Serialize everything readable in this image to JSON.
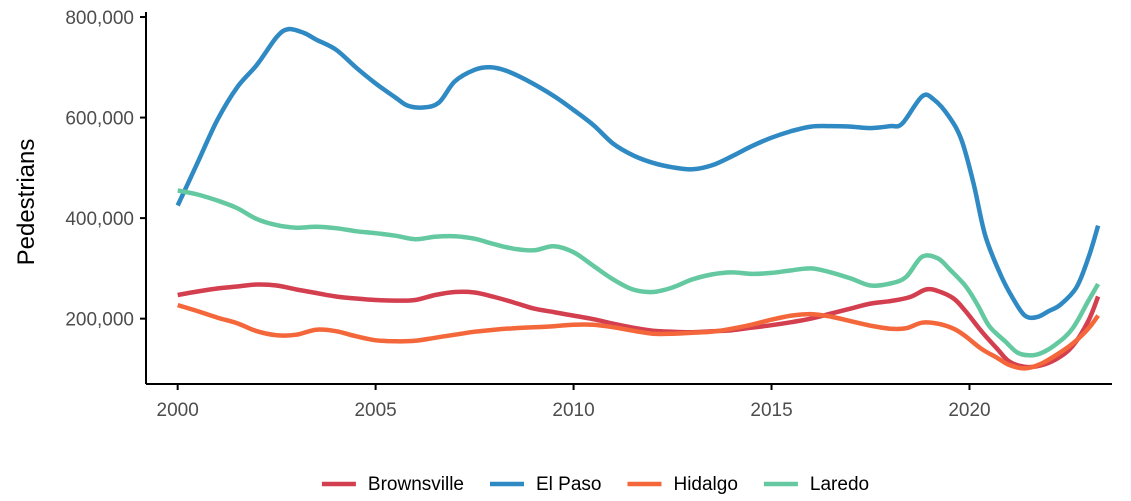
{
  "chart_data": {
    "type": "line",
    "title": "",
    "xlabel": "",
    "ylabel": "Pedestrians",
    "xlim": [
      1999.2,
      2023.6
    ],
    "ylim": [
      70000,
      810000
    ],
    "x_ticks": [
      2000,
      2005,
      2010,
      2015,
      2020
    ],
    "x_tick_labels": [
      "2000",
      "2005",
      "2010",
      "2015",
      "2020"
    ],
    "y_ticks": [
      200000,
      400000,
      600000,
      800000
    ],
    "y_tick_labels": [
      "200,000",
      "400,000",
      "600,000",
      "800,000"
    ],
    "grid": false,
    "legend_position": "bottom",
    "series": [
      {
        "name": "Brownsville",
        "color": "#d33f4f",
        "points": [
          [
            2000.0,
            247000
          ],
          [
            2000.5,
            254000
          ],
          [
            2001.0,
            260000
          ],
          [
            2001.5,
            264000
          ],
          [
            2002.0,
            268000
          ],
          [
            2002.5,
            266000
          ],
          [
            2003.0,
            258000
          ],
          [
            2003.5,
            251000
          ],
          [
            2004.0,
            244000
          ],
          [
            2004.5,
            240000
          ],
          [
            2005.0,
            237000
          ],
          [
            2005.5,
            236000
          ],
          [
            2006.0,
            237000
          ],
          [
            2006.5,
            247000
          ],
          [
            2007.0,
            253000
          ],
          [
            2007.5,
            252000
          ],
          [
            2008.0,
            243000
          ],
          [
            2008.5,
            232000
          ],
          [
            2009.0,
            220000
          ],
          [
            2009.5,
            213000
          ],
          [
            2010.0,
            206000
          ],
          [
            2010.5,
            199000
          ],
          [
            2011.0,
            190000
          ],
          [
            2011.5,
            182000
          ],
          [
            2012.0,
            176000
          ],
          [
            2012.5,
            174000
          ],
          [
            2013.0,
            173000
          ],
          [
            2013.5,
            175000
          ],
          [
            2014.0,
            177000
          ],
          [
            2014.5,
            182000
          ],
          [
            2015.0,
            187000
          ],
          [
            2015.5,
            193000
          ],
          [
            2016.0,
            200000
          ],
          [
            2016.5,
            210000
          ],
          [
            2017.0,
            220000
          ],
          [
            2017.5,
            230000
          ],
          [
            2018.0,
            235000
          ],
          [
            2018.5,
            243000
          ],
          [
            2018.9,
            258000
          ],
          [
            2019.2,
            255000
          ],
          [
            2019.6,
            240000
          ],
          [
            2019.9,
            215000
          ],
          [
            2020.3,
            175000
          ],
          [
            2020.7,
            140000
          ],
          [
            2021.0,
            115000
          ],
          [
            2021.4,
            104000
          ],
          [
            2021.8,
            107000
          ],
          [
            2022.2,
            120000
          ],
          [
            2022.6,
            145000
          ],
          [
            2023.0,
            195000
          ],
          [
            2023.25,
            244000
          ]
        ]
      },
      {
        "name": "El Paso",
        "color": "#2f8ac4",
        "points": [
          [
            2000.0,
            425000
          ],
          [
            2000.5,
            510000
          ],
          [
            2001.0,
            595000
          ],
          [
            2001.5,
            660000
          ],
          [
            2002.0,
            705000
          ],
          [
            2002.5,
            760000
          ],
          [
            2002.8,
            776000
          ],
          [
            2003.2,
            768000
          ],
          [
            2003.5,
            755000
          ],
          [
            2004.0,
            735000
          ],
          [
            2004.5,
            700000
          ],
          [
            2005.0,
            668000
          ],
          [
            2005.5,
            640000
          ],
          [
            2005.8,
            624000
          ],
          [
            2006.2,
            620000
          ],
          [
            2006.6,
            630000
          ],
          [
            2007.0,
            672000
          ],
          [
            2007.5,
            695000
          ],
          [
            2007.9,
            700000
          ],
          [
            2008.3,
            693000
          ],
          [
            2008.8,
            675000
          ],
          [
            2009.5,
            643000
          ],
          [
            2010.0,
            615000
          ],
          [
            2010.5,
            585000
          ],
          [
            2011.0,
            548000
          ],
          [
            2011.5,
            525000
          ],
          [
            2012.0,
            510000
          ],
          [
            2012.5,
            501000
          ],
          [
            2013.0,
            497000
          ],
          [
            2013.5,
            505000
          ],
          [
            2014.0,
            523000
          ],
          [
            2014.5,
            543000
          ],
          [
            2015.0,
            560000
          ],
          [
            2015.5,
            573000
          ],
          [
            2016.0,
            582000
          ],
          [
            2016.5,
            583000
          ],
          [
            2017.0,
            582000
          ],
          [
            2017.5,
            579000
          ],
          [
            2018.0,
            583000
          ],
          [
            2018.3,
            588000
          ],
          [
            2018.8,
            642000
          ],
          [
            2019.1,
            636000
          ],
          [
            2019.5,
            600000
          ],
          [
            2019.8,
            555000
          ],
          [
            2020.1,
            470000
          ],
          [
            2020.4,
            365000
          ],
          [
            2020.8,
            285000
          ],
          [
            2021.1,
            240000
          ],
          [
            2021.4,
            206000
          ],
          [
            2021.7,
            203000
          ],
          [
            2022.0,
            215000
          ],
          [
            2022.3,
            228000
          ],
          [
            2022.7,
            262000
          ],
          [
            2023.0,
            320000
          ],
          [
            2023.25,
            385000
          ]
        ]
      },
      {
        "name": "Hidalgo",
        "color": "#f4673b",
        "points": [
          [
            2000.0,
            227000
          ],
          [
            2000.5,
            215000
          ],
          [
            2001.0,
            202000
          ],
          [
            2001.5,
            191000
          ],
          [
            2002.0,
            175000
          ],
          [
            2002.5,
            167000
          ],
          [
            2003.0,
            168000
          ],
          [
            2003.5,
            178000
          ],
          [
            2004.0,
            175000
          ],
          [
            2004.5,
            165000
          ],
          [
            2005.0,
            157000
          ],
          [
            2005.5,
            155000
          ],
          [
            2006.0,
            156000
          ],
          [
            2006.5,
            162000
          ],
          [
            2007.0,
            168000
          ],
          [
            2007.5,
            174000
          ],
          [
            2008.0,
            178000
          ],
          [
            2008.5,
            181000
          ],
          [
            2009.0,
            183000
          ],
          [
            2009.5,
            185000
          ],
          [
            2010.0,
            188000
          ],
          [
            2010.5,
            188000
          ],
          [
            2011.0,
            183000
          ],
          [
            2011.5,
            176000
          ],
          [
            2012.0,
            170000
          ],
          [
            2012.5,
            170000
          ],
          [
            2013.0,
            172000
          ],
          [
            2013.5,
            174000
          ],
          [
            2014.0,
            180000
          ],
          [
            2014.5,
            188000
          ],
          [
            2015.0,
            198000
          ],
          [
            2015.5,
            206000
          ],
          [
            2016.0,
            209000
          ],
          [
            2016.5,
            204000
          ],
          [
            2017.0,
            195000
          ],
          [
            2017.5,
            186000
          ],
          [
            2018.0,
            180000
          ],
          [
            2018.4,
            181000
          ],
          [
            2018.8,
            192000
          ],
          [
            2019.2,
            190000
          ],
          [
            2019.6,
            180000
          ],
          [
            2019.9,
            165000
          ],
          [
            2020.3,
            140000
          ],
          [
            2020.7,
            122000
          ],
          [
            2021.0,
            108000
          ],
          [
            2021.4,
            101000
          ],
          [
            2021.8,
            110000
          ],
          [
            2022.2,
            128000
          ],
          [
            2022.6,
            150000
          ],
          [
            2023.0,
            180000
          ],
          [
            2023.25,
            206000
          ]
        ]
      },
      {
        "name": "Laredo",
        "color": "#64c9a0",
        "points": [
          [
            2000.0,
            455000
          ],
          [
            2000.5,
            447000
          ],
          [
            2001.0,
            435000
          ],
          [
            2001.5,
            420000
          ],
          [
            2002.0,
            398000
          ],
          [
            2002.5,
            386000
          ],
          [
            2003.0,
            381000
          ],
          [
            2003.5,
            383000
          ],
          [
            2004.0,
            380000
          ],
          [
            2004.5,
            374000
          ],
          [
            2005.0,
            370000
          ],
          [
            2005.5,
            365000
          ],
          [
            2006.0,
            358000
          ],
          [
            2006.5,
            363000
          ],
          [
            2007.0,
            364000
          ],
          [
            2007.5,
            359000
          ],
          [
            2008.0,
            348000
          ],
          [
            2008.5,
            339000
          ],
          [
            2009.0,
            336000
          ],
          [
            2009.5,
            344000
          ],
          [
            2010.0,
            332000
          ],
          [
            2010.5,
            305000
          ],
          [
            2011.0,
            278000
          ],
          [
            2011.5,
            258000
          ],
          [
            2012.0,
            253000
          ],
          [
            2012.5,
            262000
          ],
          [
            2013.0,
            278000
          ],
          [
            2013.5,
            288000
          ],
          [
            2014.0,
            292000
          ],
          [
            2014.5,
            289000
          ],
          [
            2015.0,
            291000
          ],
          [
            2015.5,
            296000
          ],
          [
            2016.0,
            300000
          ],
          [
            2016.5,
            292000
          ],
          [
            2017.0,
            280000
          ],
          [
            2017.5,
            266000
          ],
          [
            2018.0,
            270000
          ],
          [
            2018.4,
            283000
          ],
          [
            2018.8,
            323000
          ],
          [
            2019.2,
            320000
          ],
          [
            2019.5,
            298000
          ],
          [
            2019.9,
            265000
          ],
          [
            2020.2,
            228000
          ],
          [
            2020.5,
            185000
          ],
          [
            2020.9,
            155000
          ],
          [
            2021.2,
            133000
          ],
          [
            2021.5,
            127000
          ],
          [
            2021.8,
            131000
          ],
          [
            2022.2,
            150000
          ],
          [
            2022.6,
            180000
          ],
          [
            2023.0,
            235000
          ],
          [
            2023.25,
            269000
          ]
        ]
      }
    ]
  }
}
